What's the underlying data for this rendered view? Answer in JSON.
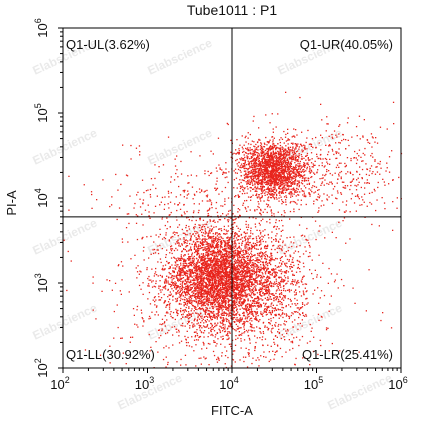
{
  "chart_data": {
    "type": "scatter",
    "title": "Tube1011 : P1",
    "xlabel": "FITC-A",
    "ylabel": "PI-A",
    "xscale": "log",
    "yscale": "log",
    "xlim": [
      100,
      1000000
    ],
    "ylim": [
      100,
      1000000
    ],
    "xticks": [
      {
        "value": 100,
        "base": "10",
        "exp": "2"
      },
      {
        "value": 1000,
        "base": "10",
        "exp": "3"
      },
      {
        "value": 10000,
        "base": "10",
        "exp": "4"
      },
      {
        "value": 100000,
        "base": "10",
        "exp": "5"
      },
      {
        "value": 1000000,
        "base": "10",
        "exp": "6"
      }
    ],
    "yticks": [
      {
        "value": 100,
        "base": "10",
        "exp": "2"
      },
      {
        "value": 1000,
        "base": "10",
        "exp": "3"
      },
      {
        "value": 10000,
        "base": "10",
        "exp": "4"
      },
      {
        "value": 100000,
        "base": "10",
        "exp": "5"
      },
      {
        "value": 1000000,
        "base": "10",
        "exp": "6"
      }
    ],
    "quadrant_gate": {
      "x": 10000,
      "y": 6000
    },
    "quadrants": [
      {
        "name": "Q1-UL",
        "percent": 3.62,
        "label": "Q1-UL(3.62%)",
        "position": "top-left"
      },
      {
        "name": "Q1-UR",
        "percent": 40.05,
        "label": "Q1-UR(40.05%)",
        "position": "top-right"
      },
      {
        "name": "Q1-LL",
        "percent": 30.92,
        "label": "Q1-LL(30.92%)",
        "position": "bottom-left"
      },
      {
        "name": "Q1-LR",
        "percent": 25.41,
        "label": "Q1-LR(25.41%)",
        "position": "bottom-right"
      }
    ],
    "point_color": "#e8241c",
    "populations": [
      {
        "center_x": 6000,
        "center_y": 1200,
        "spread_log_x": 0.28,
        "spread_log_y": 0.28,
        "count": 3200
      },
      {
        "center_x": 18000,
        "center_y": 1000,
        "spread_log_x": 0.3,
        "spread_log_y": 0.32,
        "count": 1400
      },
      {
        "center_x": 30000,
        "center_y": 22000,
        "spread_log_x": 0.2,
        "spread_log_y": 0.17,
        "count": 1900
      },
      {
        "center_x": 150000,
        "center_y": 20000,
        "spread_log_x": 0.45,
        "spread_log_y": 0.3,
        "count": 500
      },
      {
        "center_x": 3000,
        "center_y": 10000,
        "spread_log_x": 0.5,
        "spread_log_y": 0.28,
        "count": 260
      },
      {
        "center_x": 8000,
        "center_y": 500,
        "spread_log_x": 0.7,
        "spread_log_y": 0.6,
        "count": 900
      }
    ],
    "grid": false,
    "legend": "none",
    "watermark": "Elabscience"
  }
}
